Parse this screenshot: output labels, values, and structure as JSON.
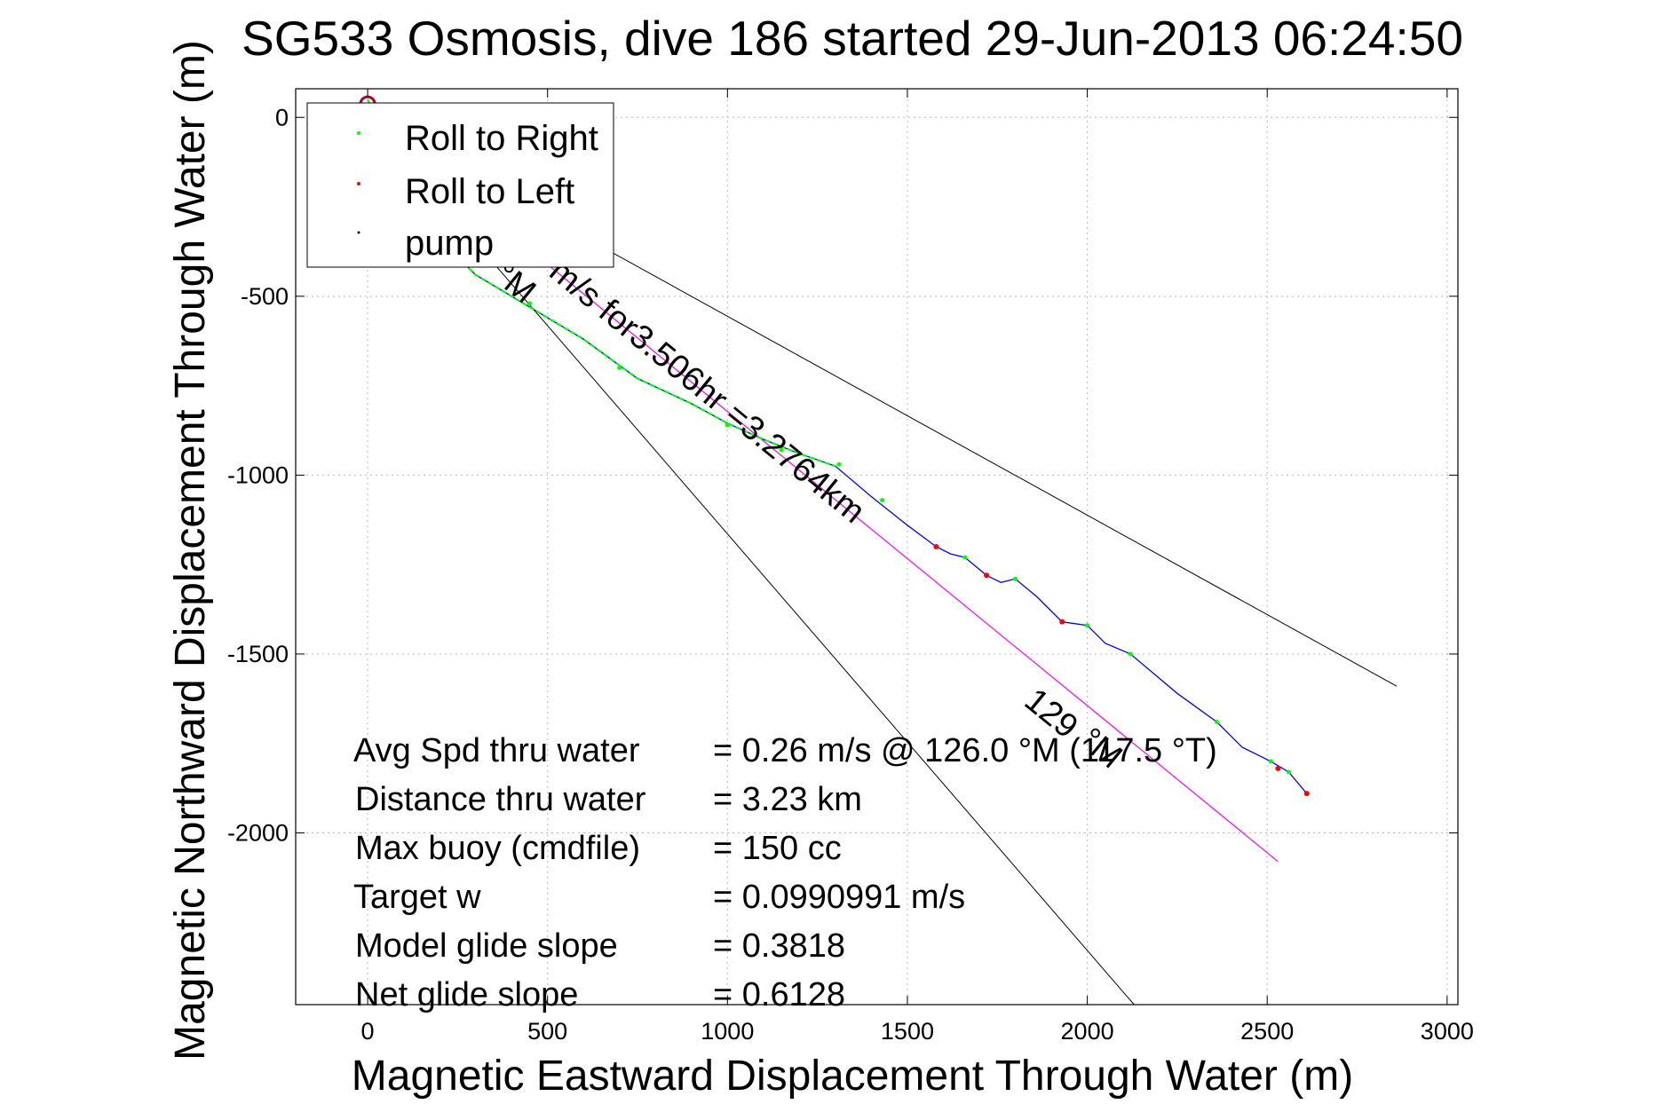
{
  "chart_data": {
    "type": "line",
    "title": "SG533 Osmosis, dive 186 started 29-Jun-2013 06:24:50",
    "xlabel": "Magnetic Eastward Displacement Through Water (m)",
    "ylabel": "Magnetic Northward Displacement Through Water (m)",
    "xlim": [
      -200,
      3030
    ],
    "ylim": [
      -2480,
      80
    ],
    "xticks": [
      0,
      500,
      1000,
      1500,
      2000,
      2500,
      3000
    ],
    "yticks": [
      0,
      -500,
      -1000,
      -1500,
      -2000
    ],
    "xtick_labels": [
      "0",
      "500",
      "1000",
      "1500",
      "2000",
      "2500",
      "3000"
    ],
    "ytick_labels": [
      "0",
      "-500",
      "-1000",
      "-1500",
      "-2000"
    ],
    "grid": true,
    "legend_position": "top-left",
    "legend": [
      {
        "label": "Roll to Right",
        "color": "#00ff00"
      },
      {
        "label": "Roll to Left",
        "color": "#ff0000"
      },
      {
        "label": "pump",
        "color": "#000000"
      }
    ],
    "colors": {
      "track": "#0000ff",
      "roll_right": "#00ff00",
      "roll_left": "#ff0000",
      "course": "#ff00ff",
      "bounds": "#000000",
      "grid": "#bbbbbb"
    },
    "series": [
      {
        "name": "Roll to Right",
        "values": [
          [
            200,
            -320
          ],
          [
            450,
            -520
          ],
          [
            700,
            -700
          ],
          [
            1000,
            -860
          ],
          [
            1150,
            -930
          ],
          [
            1310,
            -970
          ],
          [
            1430,
            -1070
          ],
          [
            1660,
            -1230
          ],
          [
            1800,
            -1290
          ],
          [
            2000,
            -1420
          ],
          [
            2120,
            -1500
          ],
          [
            2360,
            -1690
          ],
          [
            2510,
            -1800
          ],
          [
            2560,
            -1830
          ]
        ]
      },
      {
        "name": "Roll to Left",
        "values": [
          [
            1580,
            -1200
          ],
          [
            1720,
            -1280
          ],
          [
            1930,
            -1410
          ],
          [
            2530,
            -1820
          ],
          [
            2610,
            -1890
          ]
        ]
      },
      {
        "name": "track",
        "values": [
          [
            0,
            50
          ],
          [
            150,
            -290
          ],
          [
            300,
            -440
          ],
          [
            450,
            -530
          ],
          [
            600,
            -620
          ],
          [
            750,
            -730
          ],
          [
            900,
            -800
          ],
          [
            1000,
            -855
          ],
          [
            1100,
            -900
          ],
          [
            1200,
            -940
          ],
          [
            1300,
            -975
          ],
          [
            1400,
            -1060
          ],
          [
            1500,
            -1140
          ],
          [
            1580,
            -1200
          ],
          [
            1620,
            -1220
          ],
          [
            1660,
            -1230
          ],
          [
            1720,
            -1280
          ],
          [
            1760,
            -1300
          ],
          [
            1800,
            -1290
          ],
          [
            1860,
            -1340
          ],
          [
            1930,
            -1410
          ],
          [
            2000,
            -1420
          ],
          [
            2050,
            -1470
          ],
          [
            2120,
            -1500
          ],
          [
            2250,
            -1610
          ],
          [
            2360,
            -1690
          ],
          [
            2430,
            -1760
          ],
          [
            2510,
            -1800
          ],
          [
            2560,
            -1830
          ],
          [
            2610,
            -1890
          ]
        ]
      },
      {
        "name": "course",
        "values": [
          [
            0,
            0
          ],
          [
            2530,
            -2080
          ]
        ]
      },
      {
        "name": "bound_upper",
        "values": [
          [
            0,
            0
          ],
          [
            2860,
            -1590
          ]
        ]
      },
      {
        "name": "bound_lower",
        "values": [
          [
            0,
            0
          ],
          [
            2130,
            -2480
          ]
        ]
      }
    ],
    "annotations": [
      {
        "text": "m/s for3.506hr =3.2764km",
        "x": 500,
        "y": -440
      },
      {
        "text": "°M",
        "x": 345,
        "y": -450
      },
      {
        "text": "129",
        "x": 1820,
        "y": -1640
      },
      {
        "text": "°M",
        "x": 1975,
        "y": -1750
      }
    ],
    "stats": [
      {
        "label": "Avg Spd thru water",
        "value": "=  0.26 m/s @ 126.0 °M (117.5 °T)"
      },
      {
        "label": "Distance thru water",
        "value": "=  3.23 km"
      },
      {
        "label": "Max buoy (cmdfile)",
        "value": "= 150 cc"
      },
      {
        "label": "Target w",
        "value": "= 0.0990991 m/s"
      },
      {
        "label": "Model glide slope",
        "value": "= 0.3818"
      },
      {
        "label": "Net glide slope",
        "value": "= 0.6128"
      }
    ]
  }
}
